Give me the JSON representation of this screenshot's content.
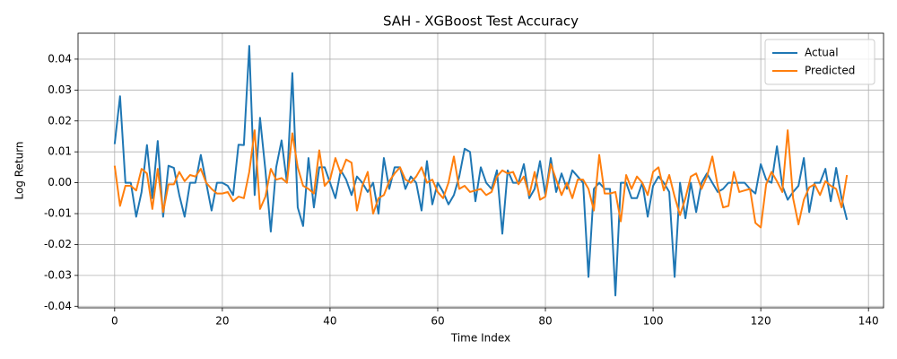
{
  "chart_data": {
    "type": "line",
    "title": "SAH - XGBoost Test Accuracy",
    "x_label": "Time Index",
    "y_label": "Log Return",
    "x": [
      0,
      1,
      2,
      3,
      4,
      5,
      6,
      7,
      8,
      9,
      10,
      11,
      12,
      13,
      14,
      15,
      16,
      17,
      18,
      19,
      20,
      21,
      22,
      23,
      24,
      25,
      26,
      27,
      28,
      29,
      30,
      31,
      32,
      33,
      34,
      35,
      36,
      37,
      38,
      39,
      40,
      41,
      42,
      43,
      44,
      45,
      46,
      47,
      48,
      49,
      50,
      51,
      52,
      53,
      54,
      55,
      56,
      57,
      58,
      59,
      60,
      61,
      62,
      63,
      64,
      65,
      66,
      67,
      68,
      69,
      70,
      71,
      72,
      73,
      74,
      75,
      76,
      77,
      78,
      79,
      80,
      81,
      82,
      83,
      84,
      85,
      86,
      87,
      88,
      89,
      90,
      91,
      92,
      93,
      94,
      95,
      96,
      97,
      98,
      99,
      100,
      101,
      102,
      103,
      104,
      105,
      106,
      107,
      108,
      109,
      110,
      111,
      112,
      113,
      114,
      115,
      116,
      117,
      118,
      119,
      120,
      121,
      122,
      123,
      124,
      125,
      126,
      127,
      128,
      129,
      130,
      131,
      132,
      133,
      134,
      135,
      136
    ],
    "series": [
      {
        "name": "Actual",
        "color": "#1f77b4",
        "values": [
          0.0125,
          0.028,
          0.0,
          0.0,
          -0.011,
          -0.003,
          0.0122,
          -0.005,
          0.0135,
          -0.011,
          0.0055,
          0.0048,
          -0.004,
          -0.011,
          0.0,
          0.0,
          0.009,
          0.0,
          -0.009,
          0.0,
          0.0,
          -0.001,
          -0.004,
          0.0123,
          0.0122,
          0.0443,
          -0.004,
          0.021,
          0.004,
          -0.0158,
          0.005,
          0.0137,
          0.0,
          0.0355,
          -0.008,
          -0.014,
          0.008,
          -0.008,
          0.005,
          0.005,
          0.0,
          -0.005,
          0.004,
          0.001,
          -0.004,
          0.002,
          0.0,
          -0.003,
          0.0,
          -0.01,
          0.008,
          -0.002,
          0.005,
          0.005,
          -0.002,
          0.002,
          0.0,
          -0.009,
          0.007,
          -0.007,
          0.0,
          -0.003,
          -0.007,
          -0.004,
          0.002,
          0.011,
          0.01,
          -0.006,
          0.005,
          0.0,
          -0.002,
          0.004,
          -0.0165,
          0.004,
          0.0,
          0.0,
          0.006,
          -0.005,
          -0.002,
          0.007,
          -0.004,
          0.008,
          -0.003,
          0.003,
          -0.002,
          0.004,
          0.002,
          0.0,
          -0.0305,
          -0.002,
          0.0,
          -0.002,
          -0.002,
          -0.0365,
          0.0,
          0.0,
          -0.005,
          -0.005,
          0.0,
          -0.011,
          -0.001,
          0.002,
          0.0,
          -0.003,
          -0.0305,
          0.0,
          -0.0115,
          0.0,
          -0.0095,
          0.0,
          0.003,
          0.0,
          -0.003,
          -0.002,
          0.0,
          0.0,
          0.0,
          0.0,
          -0.002,
          -0.0035,
          0.006,
          0.001,
          0.0,
          0.0118,
          -0.001,
          -0.0055,
          -0.003,
          -0.001,
          0.008,
          -0.0095,
          0.0,
          0.0,
          0.0045,
          -0.006,
          0.0048,
          -0.005,
          -0.012
        ]
      },
      {
        "name": "Predicted",
        "color": "#ff7f0e",
        "values": [
          0.0055,
          -0.0075,
          -0.001,
          -0.001,
          -0.0025,
          0.0045,
          0.003,
          -0.0085,
          0.0045,
          -0.0095,
          -0.0005,
          -0.0005,
          0.0035,
          0.0005,
          0.0025,
          0.002,
          0.0045,
          0.0,
          -0.002,
          -0.0035,
          -0.0035,
          -0.003,
          -0.006,
          -0.0045,
          -0.005,
          0.0035,
          0.017,
          -0.0085,
          -0.0045,
          0.0045,
          0.001,
          0.0015,
          0.0,
          0.016,
          0.005,
          -0.001,
          -0.002,
          -0.0035,
          0.0105,
          -0.001,
          0.001,
          0.008,
          0.003,
          0.0075,
          0.0065,
          -0.009,
          -0.001,
          0.0035,
          -0.01,
          -0.005,
          -0.004,
          0.0005,
          0.003,
          0.005,
          0.001,
          0.0,
          0.002,
          0.005,
          0.0,
          0.001,
          -0.003,
          -0.005,
          0.0,
          0.0085,
          -0.002,
          -0.001,
          -0.003,
          -0.0025,
          -0.002,
          -0.004,
          -0.003,
          0.002,
          0.004,
          0.003,
          0.0035,
          -0.0005,
          0.002,
          -0.004,
          0.0035,
          -0.0055,
          -0.0045,
          0.006,
          0.001,
          -0.004,
          0.0,
          -0.005,
          0.001,
          0.001,
          -0.002,
          -0.009,
          0.009,
          -0.0035,
          -0.0035,
          -0.003,
          -0.0125,
          0.0025,
          -0.002,
          0.002,
          0.0,
          -0.004,
          0.0035,
          0.005,
          -0.0025,
          0.0025,
          -0.0045,
          -0.0105,
          -0.005,
          0.002,
          0.003,
          -0.002,
          0.002,
          0.0085,
          -0.001,
          -0.008,
          -0.0075,
          0.0035,
          -0.003,
          -0.0025,
          -0.002,
          -0.013,
          -0.0145,
          -0.0005,
          0.0035,
          0.0005,
          -0.003,
          0.017,
          -0.005,
          -0.0135,
          -0.0055,
          -0.0015,
          -0.0005,
          -0.004,
          0.0005,
          -0.001,
          -0.002,
          -0.008,
          0.0025
        ]
      }
    ],
    "xlim": [
      -6.8,
      142.8
    ],
    "xticks": [
      0,
      20,
      40,
      60,
      80,
      100,
      120,
      140
    ],
    "ylim": [
      -0.0405,
      0.0484
    ],
    "yticks": [
      -0.04,
      -0.03,
      -0.02,
      -0.01,
      {
        "value": 0,
        "label": "0.00"
      },
      0.01,
      0.02,
      0.03,
      0.04
    ],
    "grid": true,
    "legend": "upper-right"
  }
}
